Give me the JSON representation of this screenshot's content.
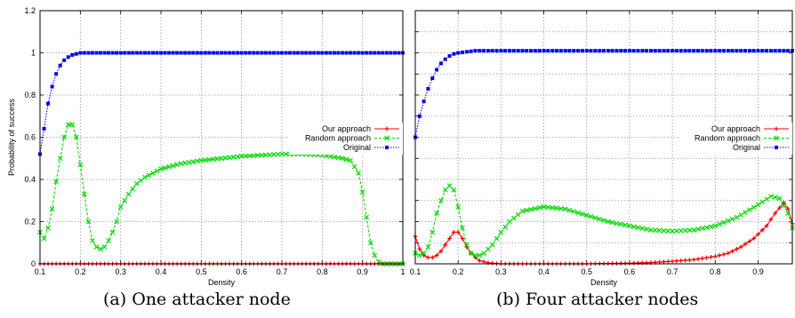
{
  "captions": [
    "(a) One attacker node",
    "(b) Four attacker nodes"
  ],
  "chart_data": [
    {
      "type": "line",
      "xlabel": "Density",
      "ylabel": "Probability of success",
      "xlim": [
        0.1,
        1
      ],
      "ylim": [
        0,
        1.2
      ],
      "x_ticks": [
        "0.1",
        "0.2",
        "0.3",
        "0.4",
        "0.5",
        "0.6",
        "0.7",
        "0.8",
        "0.9",
        "1"
      ],
      "y_ticks": [
        "0",
        "0.2",
        "0.4",
        "0.6",
        "0.8",
        "1",
        "1.2"
      ],
      "grid": true,
      "legend_position": "middle-right",
      "series": [
        {
          "name": "Our approach",
          "color": "#ff0000",
          "x": [
            0.1,
            0.2,
            0.3,
            0.4,
            0.5,
            0.6,
            0.7,
            0.8,
            0.9,
            1.0
          ],
          "y": [
            0,
            0,
            0,
            0,
            0,
            0,
            0,
            0,
            0,
            0
          ]
        },
        {
          "name": "Random approach",
          "color": "#00dd00",
          "x": [
            0.1,
            0.11,
            0.12,
            0.13,
            0.14,
            0.15,
            0.16,
            0.17,
            0.18,
            0.19,
            0.2,
            0.21,
            0.22,
            0.23,
            0.24,
            0.25,
            0.26,
            0.27,
            0.28,
            0.29,
            0.3,
            0.32,
            0.34,
            0.36,
            0.38,
            0.4,
            0.45,
            0.5,
            0.55,
            0.6,
            0.65,
            0.7,
            0.75,
            0.8,
            0.85,
            0.87,
            0.89,
            0.9,
            0.91,
            0.92,
            0.93,
            0.94,
            0.95,
            0.96,
            0.98,
            1.0
          ],
          "y": [
            0.15,
            0.12,
            0.17,
            0.26,
            0.39,
            0.5,
            0.6,
            0.66,
            0.66,
            0.6,
            0.47,
            0.33,
            0.2,
            0.11,
            0.08,
            0.07,
            0.08,
            0.11,
            0.15,
            0.2,
            0.27,
            0.33,
            0.38,
            0.41,
            0.43,
            0.45,
            0.475,
            0.49,
            0.5,
            0.51,
            0.515,
            0.52,
            0.52,
            0.515,
            0.5,
            0.49,
            0.43,
            0.34,
            0.22,
            0.1,
            0.04,
            0.01,
            0.0,
            0.0,
            0.0,
            0.0
          ]
        },
        {
          "name": "Original",
          "color": "#0000ff",
          "x": [
            0.1,
            0.11,
            0.12,
            0.13,
            0.14,
            0.15,
            0.16,
            0.17,
            0.18,
            0.19,
            0.2,
            0.22,
            0.25,
            0.3,
            0.4,
            0.5,
            0.6,
            0.7,
            0.8,
            0.9,
            1.0
          ],
          "y": [
            0.52,
            0.64,
            0.76,
            0.84,
            0.9,
            0.94,
            0.965,
            0.98,
            0.99,
            0.995,
            1.0,
            1.0,
            1.0,
            1.0,
            1.0,
            1.0,
            1.0,
            1.0,
            1.0,
            1.0,
            1.0
          ]
        }
      ]
    },
    {
      "type": "line",
      "xlabel": "Density",
      "ylabel": "",
      "xlim": [
        0.1,
        0.98
      ],
      "ylim": [
        0,
        1.2
      ],
      "x_ticks": [
        "0.1",
        "0.2",
        "0.3",
        "0.4",
        "0.5",
        "0.6",
        "0.7",
        "0.8",
        "0.9"
      ],
      "y_ticks": [],
      "grid": true,
      "legend_position": "middle-right",
      "series": [
        {
          "name": "Our approach",
          "color": "#ff0000",
          "x": [
            0.1,
            0.11,
            0.12,
            0.13,
            0.14,
            0.15,
            0.16,
            0.17,
            0.18,
            0.19,
            0.2,
            0.21,
            0.22,
            0.23,
            0.24,
            0.25,
            0.27,
            0.3,
            0.35,
            0.4,
            0.5,
            0.6,
            0.65,
            0.7,
            0.75,
            0.8,
            0.83,
            0.86,
            0.89,
            0.92,
            0.94,
            0.96,
            0.97,
            0.98
          ],
          "y": [
            0.13,
            0.07,
            0.04,
            0.03,
            0.03,
            0.04,
            0.06,
            0.09,
            0.12,
            0.15,
            0.15,
            0.12,
            0.08,
            0.05,
            0.03,
            0.015,
            0.005,
            0.0,
            0.0,
            0.0,
            0.0,
            0.003,
            0.006,
            0.012,
            0.02,
            0.035,
            0.05,
            0.08,
            0.12,
            0.18,
            0.24,
            0.29,
            0.26,
            0.19
          ]
        },
        {
          "name": "Random approach",
          "color": "#00dd00",
          "x": [
            0.1,
            0.11,
            0.12,
            0.13,
            0.14,
            0.15,
            0.16,
            0.17,
            0.18,
            0.19,
            0.2,
            0.21,
            0.22,
            0.23,
            0.24,
            0.25,
            0.26,
            0.28,
            0.3,
            0.32,
            0.35,
            0.4,
            0.45,
            0.5,
            0.55,
            0.6,
            0.65,
            0.7,
            0.75,
            0.8,
            0.85,
            0.9,
            0.93,
            0.95,
            0.97,
            0.98
          ],
          "y": [
            0.05,
            0.04,
            0.05,
            0.08,
            0.15,
            0.24,
            0.3,
            0.35,
            0.37,
            0.35,
            0.27,
            0.17,
            0.09,
            0.05,
            0.04,
            0.04,
            0.05,
            0.09,
            0.15,
            0.2,
            0.25,
            0.27,
            0.26,
            0.23,
            0.2,
            0.18,
            0.16,
            0.155,
            0.16,
            0.18,
            0.22,
            0.28,
            0.32,
            0.31,
            0.24,
            0.17
          ]
        },
        {
          "name": "Original",
          "color": "#0000ff",
          "x": [
            0.1,
            0.11,
            0.12,
            0.13,
            0.14,
            0.15,
            0.16,
            0.17,
            0.18,
            0.19,
            0.2,
            0.22,
            0.24,
            0.26,
            0.28,
            0.3,
            0.35,
            0.4,
            0.5,
            0.6,
            0.7,
            0.8,
            0.9,
            0.98
          ],
          "y": [
            0.6,
            0.7,
            0.77,
            0.83,
            0.88,
            0.92,
            0.95,
            0.97,
            0.985,
            0.995,
            1.0,
            1.005,
            1.01,
            1.01,
            1.01,
            1.01,
            1.01,
            1.01,
            1.01,
            1.01,
            1.01,
            1.01,
            1.01,
            1.01
          ]
        }
      ]
    }
  ]
}
